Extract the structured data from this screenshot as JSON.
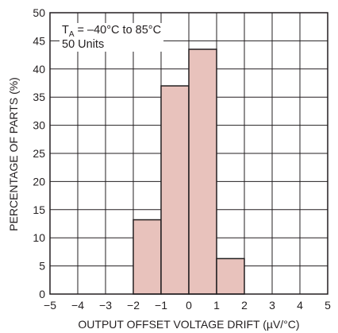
{
  "chart_data": {
    "type": "bar",
    "xlabel": "OUTPUT OFFSET VOLTAGE DRIFT (µV/°C)",
    "ylabel": "PERCENTAGE OF PARTS (%)",
    "xlim": [
      -5,
      5
    ],
    "ylim": [
      0,
      50
    ],
    "xticks": [
      -5,
      -4,
      -3,
      -2,
      -1,
      0,
      1,
      2,
      3,
      4,
      5
    ],
    "yticks": [
      0,
      5,
      10,
      15,
      20,
      25,
      30,
      35,
      40,
      45,
      50
    ],
    "grid": true,
    "bins": [
      {
        "from": -2,
        "to": -1,
        "value": 13.2
      },
      {
        "from": -1,
        "to": 0,
        "value": 37.0
      },
      {
        "from": 0,
        "to": 1,
        "value": 43.5
      },
      {
        "from": 1,
        "to": 2,
        "value": 6.3
      }
    ],
    "annotation": {
      "line1_prefix": "T",
      "line1_sub": "A",
      "line1_rest": " = –40°C to 85°C",
      "line2": "50 Units"
    },
    "colors": {
      "bar_fill": "#e8c2bc",
      "bar_stroke": "#231f20",
      "grid": "#231f20",
      "axis": "#231f20"
    }
  }
}
